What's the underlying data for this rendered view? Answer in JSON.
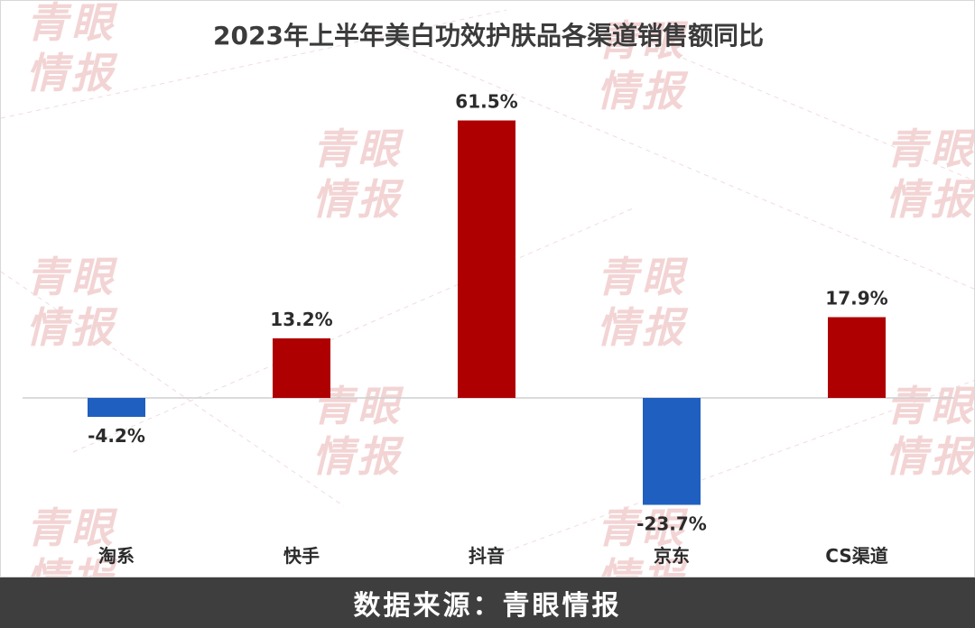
{
  "chart_data": {
    "type": "bar",
    "title": "2023年上半年美白功效护肤品各渠道销售额同比",
    "categories": [
      "淘系",
      "快手",
      "抖音",
      "京东",
      "CS渠道"
    ],
    "values": [
      -4.2,
      13.2,
      61.5,
      -23.7,
      17.9
    ],
    "value_labels": [
      "-4.2%",
      "13.2%",
      "61.5%",
      "-23.7%",
      "17.9%"
    ],
    "unit": "%",
    "ylim": [
      -27,
      65
    ],
    "grid": false,
    "legend": "none",
    "colors": {
      "positive": "#ae0000",
      "negative": "#1f5fbf",
      "axis": "#cfcfcf",
      "title": "#3b3b3b",
      "label": "#2b2b2b"
    }
  },
  "watermark": {
    "line1": "青眼",
    "line2": "情报",
    "color": "#f3d4d4"
  },
  "footer": {
    "source_text": "数据来源：青眼情报",
    "background": "#3e3e3e"
  }
}
